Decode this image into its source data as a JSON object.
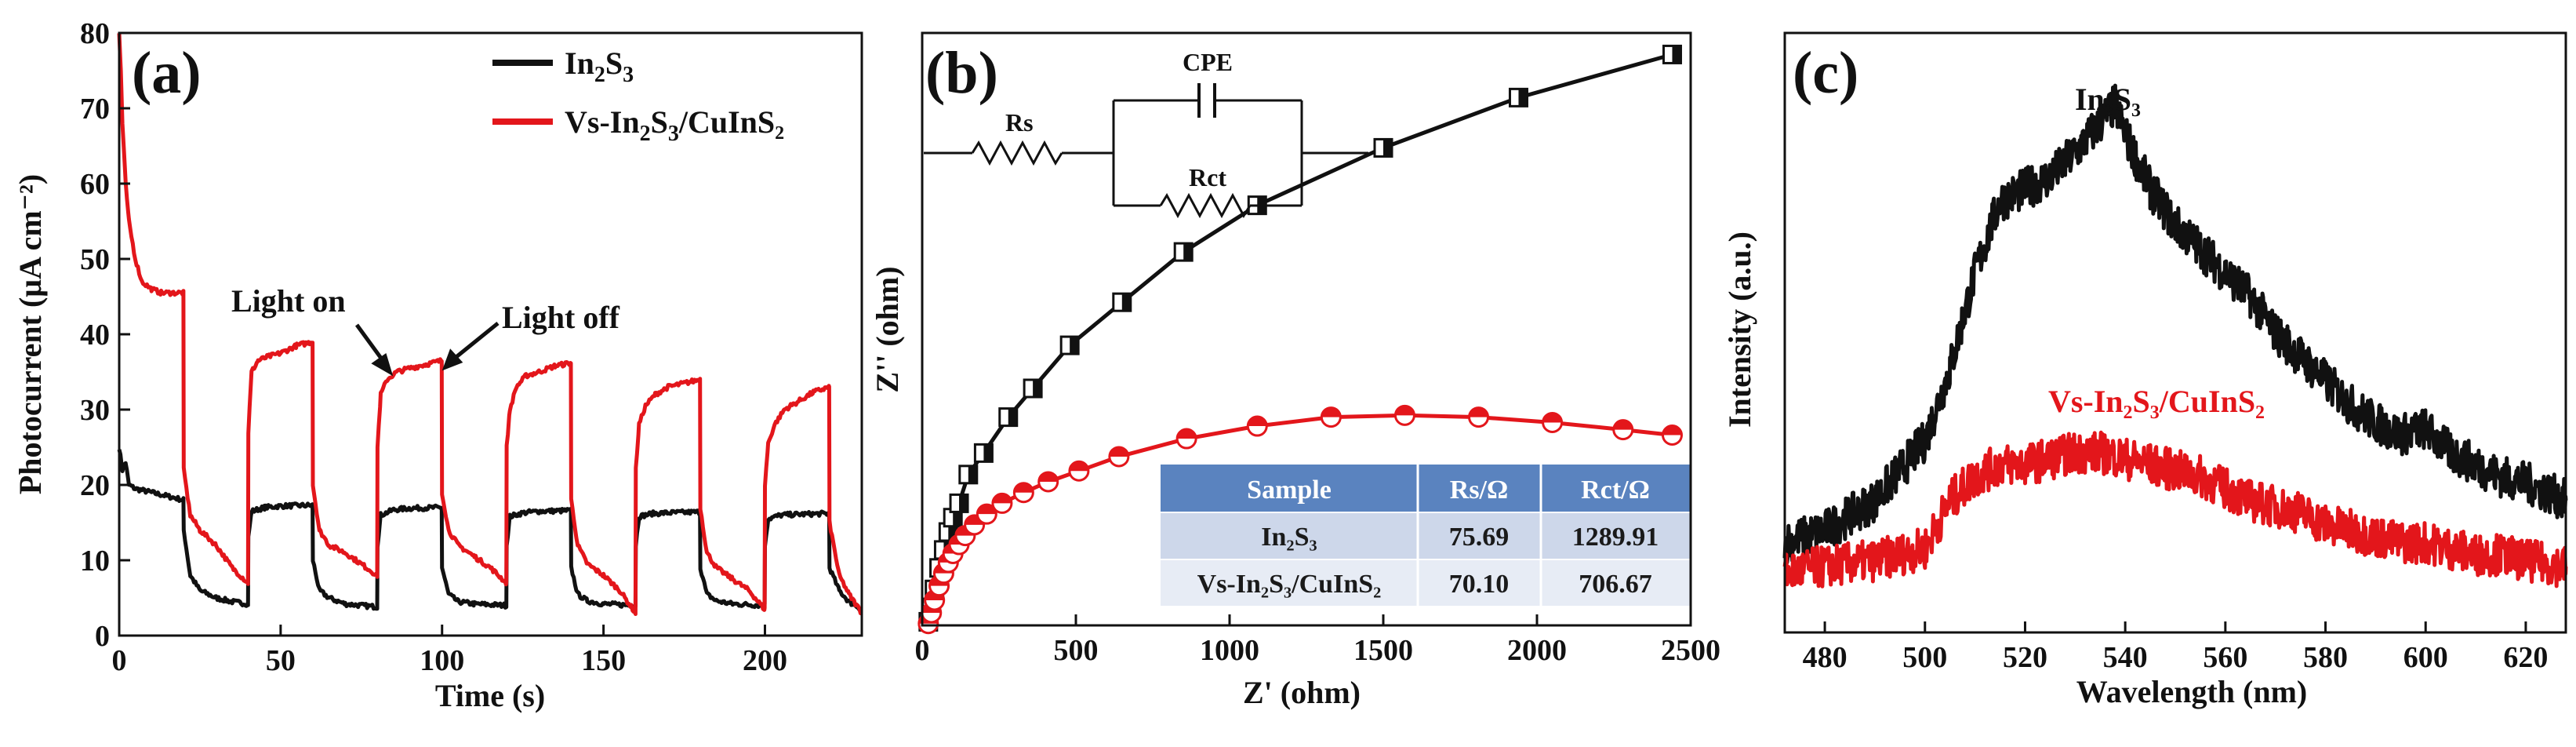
{
  "colors": {
    "black_series": "#111111",
    "red_series": "#e3161b",
    "table_header_bg": "#5a83bf",
    "table_row1_bg": "#cdd7ea",
    "table_row2_bg": "#e7ecf5"
  },
  "panels": [
    {
      "id": "a",
      "label": "(a)",
      "xlabel": "Time (s)",
      "ylabel": "Photocurrent (μA cm⁻²)",
      "xticks": [
        "0",
        "50",
        "100",
        "150",
        "200"
      ],
      "yticks": [
        "0",
        "10",
        "20",
        "30",
        "40",
        "50",
        "60",
        "70",
        "80"
      ],
      "legend": [
        {
          "sym": "In",
          "sub1": "2",
          "mid": "S",
          "sub2": "3",
          "tail": "",
          "color": "#111111"
        },
        {
          "sym": "Vs-In",
          "sub1": "2",
          "mid": "S",
          "sub2": "3",
          "tail": "/CuInS₂",
          "color": "#e3161b"
        }
      ],
      "annotations": [
        "Light on",
        "Light off"
      ]
    },
    {
      "id": "b",
      "label": "(b)",
      "xlabel": "Z' (ohm)",
      "ylabel": "Z'' (ohm)",
      "xticks": [
        "0",
        "500",
        "1000",
        "1500",
        "2000",
        "2500"
      ],
      "circuit": {
        "r1": "Rs",
        "cap": "CPE",
        "r2": "Rct"
      },
      "table": {
        "headers": [
          "Sample",
          "Rs/Ω",
          "Rct/Ω"
        ],
        "rows": [
          [
            "In₂S₃",
            "75.69",
            "1289.91"
          ],
          [
            "Vs-In₂S₃/CuInS₂",
            "70.10",
            "706.67"
          ]
        ]
      }
    },
    {
      "id": "c",
      "label": "(c)",
      "xlabel": "Wavelength (nm)",
      "ylabel": "Intensity (a.u.)",
      "xticks": [
        "480",
        "500",
        "520",
        "540",
        "560",
        "580",
        "600",
        "620"
      ],
      "series_labels": [
        "In₂S₃",
        "Vs-In₂S₃/CuInS₂"
      ]
    }
  ],
  "chart_data": [
    {
      "type": "line",
      "title": "",
      "xlabel": "Time (s)",
      "ylabel": "Photocurrent (μA cm⁻²)",
      "xlim": [
        0,
        230
      ],
      "ylim": [
        0,
        80
      ],
      "series": [
        {
          "name": "In₂S₃",
          "color": "#111111",
          "x": [
            0,
            1,
            2,
            3,
            5,
            10,
            15,
            19.9,
            20,
            22,
            25,
            30,
            35,
            39.9,
            40,
            41,
            45,
            50,
            59.9,
            60,
            62,
            65,
            70,
            79.9,
            80,
            81,
            85,
            90,
            99.9,
            100,
            102,
            105,
            110,
            119.9,
            120,
            121,
            125,
            130,
            139.9,
            140,
            142,
            145,
            150,
            159.9,
            160,
            161,
            165,
            170,
            179.9,
            180,
            182,
            185,
            190,
            199.9,
            200,
            201,
            205,
            210,
            219.9,
            220,
            223,
            226,
            230
          ],
          "y": [
            25,
            22,
            23,
            20,
            19.5,
            19,
            18.5,
            18,
            14,
            8,
            6,
            5,
            4.5,
            4.2,
            13,
            16.5,
            17,
            17.2,
            17.3,
            10,
            6,
            5,
            4.2,
            3.8,
            12,
            16,
            16.7,
            16.9,
            17,
            9,
            5.5,
            4.5,
            4.2,
            4,
            12,
            15.8,
            16.3,
            16.5,
            16.6,
            9,
            5.5,
            4.6,
            4.2,
            4,
            12,
            15.8,
            16.2,
            16.3,
            16.4,
            9,
            5.5,
            4.6,
            4.2,
            4,
            12,
            15.5,
            16,
            16.1,
            16.2,
            9,
            6,
            4.5,
            3.5
          ]
        },
        {
          "name": "Vs-In₂S₃/CuInS₂",
          "color": "#e3161b",
          "x": [
            0,
            0.5,
            1,
            2,
            3,
            5,
            7,
            10,
            13,
            16,
            19.9,
            20,
            22,
            25,
            30,
            35,
            39.9,
            40,
            41,
            43,
            46,
            50,
            55,
            59.9,
            60,
            62,
            65,
            70,
            75,
            79.9,
            80,
            81,
            83,
            86,
            90,
            95,
            99.9,
            100,
            102,
            105,
            110,
            115,
            119.9,
            120,
            121,
            123,
            126,
            130,
            135,
            139.9,
            140,
            142,
            145,
            150,
            155,
            159.9,
            160,
            161,
            163,
            166,
            170,
            175,
            179.9,
            180,
            182,
            185,
            190,
            195,
            199.9,
            200,
            201,
            203,
            206,
            210,
            215,
            219.9,
            220,
            223,
            226,
            230
          ],
          "y": [
            80,
            75,
            68,
            60,
            55,
            50,
            47,
            46,
            45.5,
            45.5,
            45.5,
            22,
            16,
            14,
            12,
            9,
            7,
            27,
            35,
            36.5,
            37,
            37.5,
            38.5,
            39,
            20,
            14,
            12,
            11,
            9.5,
            8,
            25,
            32,
            34,
            35,
            35.5,
            36,
            36.5,
            19,
            14,
            12,
            10.5,
            9,
            7,
            25,
            30,
            33,
            34.5,
            35,
            35.8,
            36.2,
            18,
            12,
            9.5,
            8,
            6,
            3,
            22,
            28,
            30.5,
            32,
            33,
            33.5,
            34,
            17,
            11,
            9,
            7.5,
            6,
            3.5,
            20,
            25.5,
            28,
            30,
            31,
            32.3,
            33,
            15,
            8,
            5.5,
            3
          ]
        }
      ],
      "annotations": [
        "Light on",
        "Light off"
      ]
    },
    {
      "type": "scatter",
      "title": "",
      "xlabel": "Z' (ohm)",
      "ylabel": "Z'' (ohm)",
      "xlim": [
        0,
        2500
      ],
      "ylim": [
        0,
        1650
      ],
      "series": [
        {
          "name": "In₂S₃",
          "color": "#111111",
          "x": [
            20,
            30,
            40,
            55,
            70,
            85,
            100,
            120,
            150,
            200,
            280,
            360,
            480,
            650,
            850,
            1090,
            1500,
            1940,
            2440
          ],
          "y": [
            10,
            50,
            100,
            160,
            210,
            260,
            300,
            340,
            420,
            480,
            580,
            660,
            780,
            900,
            1040,
            1170,
            1330,
            1470,
            1590
          ]
        },
        {
          "name": "Vs-In₂S₃/CuInS₂",
          "color": "#e3161b",
          "x": [
            20,
            30,
            40,
            55,
            70,
            85,
            100,
            120,
            140,
            170,
            210,
            260,
            330,
            410,
            510,
            640,
            860,
            1090,
            1330,
            1570,
            1810,
            2050,
            2280,
            2440
          ],
          "y": [
            5,
            35,
            70,
            110,
            145,
            175,
            200,
            225,
            250,
            280,
            310,
            340,
            370,
            400,
            430,
            470,
            520,
            555,
            580,
            585,
            580,
            565,
            545,
            530
          ]
        }
      ],
      "table": {
        "headers": [
          "Sample",
          "Rs/Ω",
          "Rct/Ω"
        ],
        "rows": [
          [
            "In₂S₃",
            "75.69",
            "1289.91"
          ],
          [
            "Vs-In₂S₃/CuInS₂",
            "70.10",
            "706.67"
          ]
        ]
      },
      "circuit_labels": [
        "Rs",
        "CPE",
        "Rct"
      ]
    },
    {
      "type": "line",
      "title": "",
      "xlabel": "Wavelength (nm)",
      "ylabel": "Intensity (a.u.)",
      "xlim": [
        472,
        628
      ],
      "ylim": [
        0,
        100
      ],
      "series": [
        {
          "name": "In₂S₃",
          "color": "#111111",
          "x": [
            472,
            480,
            490,
            500,
            505,
            510,
            515,
            520,
            525,
            530,
            535,
            538,
            540,
            545,
            550,
            555,
            560,
            565,
            570,
            575,
            580,
            585,
            590,
            595,
            600,
            605,
            610,
            615,
            620,
            628
          ],
          "y": [
            15,
            17,
            22,
            32,
            44,
            60,
            72,
            74,
            76,
            80,
            85,
            88,
            83,
            74,
            68,
            64,
            60,
            56,
            50,
            46,
            42,
            38,
            35,
            33,
            34,
            30,
            28,
            26,
            25,
            22
          ]
        },
        {
          "name": "Vs-In₂S₃/CuInS₂",
          "color": "#e3161b",
          "x": [
            472,
            480,
            490,
            500,
            505,
            510,
            515,
            520,
            525,
            530,
            535,
            540,
            545,
            550,
            555,
            560,
            565,
            570,
            575,
            580,
            585,
            590,
            595,
            600,
            605,
            610,
            615,
            620,
            628
          ],
          "y": [
            10,
            11,
            12,
            14,
            22,
            26,
            28,
            28,
            29,
            30,
            30,
            29,
            28,
            27,
            26,
            24,
            22,
            21,
            20,
            18,
            17,
            16,
            15,
            15,
            14,
            13,
            13,
            12,
            11
          ]
        }
      ],
      "series_labels": [
        "In₂S₃",
        "Vs-In₂S₃/CuInS₂"
      ]
    }
  ]
}
